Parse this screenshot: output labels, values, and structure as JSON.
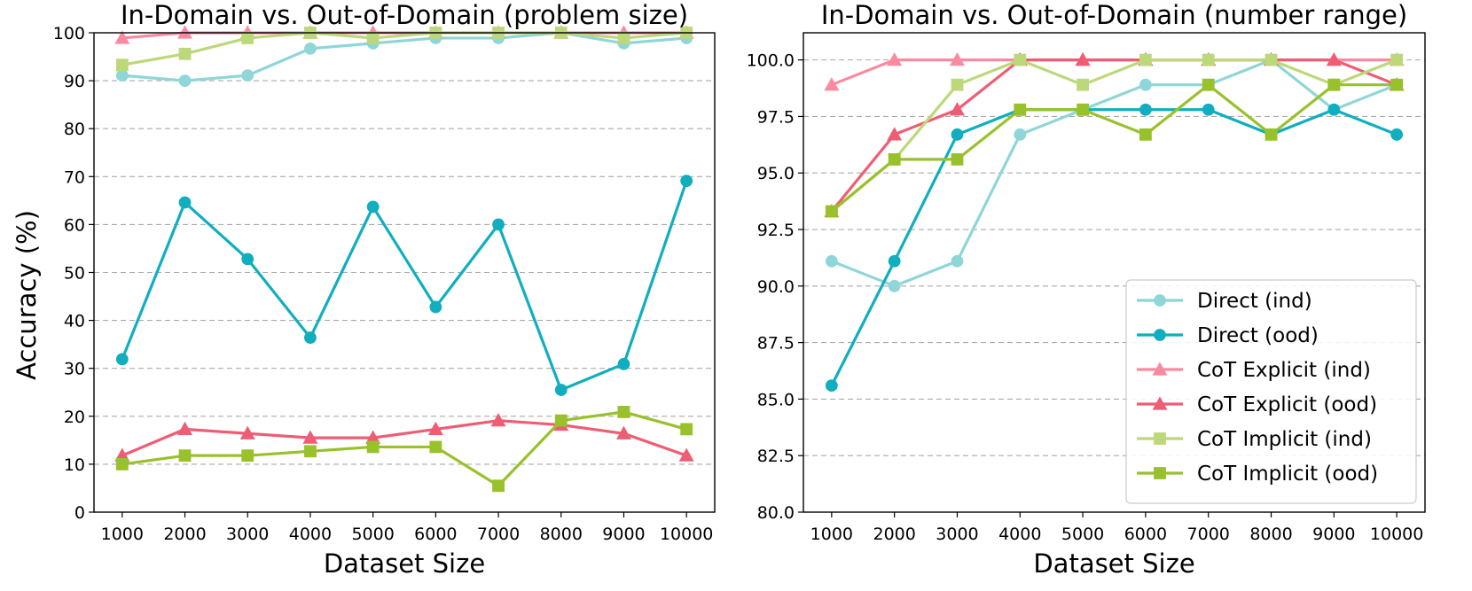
{
  "figure": {
    "shared_ylabel": "Accuracy (%)"
  },
  "chart_data": [
    {
      "type": "line",
      "title": "In-Domain vs. Out-of-Domain (problem size)",
      "xlabel": "Dataset Size",
      "x": [
        1000,
        2000,
        3000,
        4000,
        5000,
        6000,
        7000,
        8000,
        9000,
        10000
      ],
      "ylim": [
        0,
        100
      ],
      "yticks": [
        0,
        10,
        20,
        30,
        40,
        50,
        60,
        70,
        80,
        90,
        100
      ],
      "ytick_labels": [
        "0",
        "10",
        "20",
        "30",
        "40",
        "50",
        "60",
        "70",
        "80",
        "90",
        "100"
      ],
      "grid": "y-dashed",
      "series": [
        {
          "name": "Direct (ind)",
          "color": "#8fd6d8",
          "marker": "circle",
          "values": [
            91.1,
            90.0,
            91.1,
            96.7,
            97.8,
            98.9,
            98.9,
            100.0,
            97.8,
            98.9
          ]
        },
        {
          "name": "Direct (ood)",
          "color": "#10aebf",
          "marker": "circle",
          "values": [
            31.9,
            64.6,
            52.8,
            36.4,
            63.7,
            42.8,
            60.0,
            25.5,
            30.9,
            69.1
          ]
        },
        {
          "name": "CoT Explicit (ind)",
          "color": "#fb8aa1",
          "marker": "triangle",
          "values": [
            98.9,
            100.0,
            100.0,
            100.0,
            100.0,
            100.0,
            100.0,
            100.0,
            100.0,
            100.0
          ]
        },
        {
          "name": "CoT Explicit (ood)",
          "color": "#ee5d74",
          "marker": "triangle",
          "values": [
            11.8,
            17.3,
            16.4,
            15.5,
            15.5,
            17.3,
            19.1,
            18.2,
            16.4,
            11.8
          ]
        },
        {
          "name": "CoT Implicit (ind)",
          "color": "#bcd87a",
          "marker": "square",
          "values": [
            93.3,
            95.6,
            98.9,
            100.0,
            98.9,
            100.0,
            100.0,
            100.0,
            98.9,
            100.0
          ]
        },
        {
          "name": "CoT Implicit (ood)",
          "color": "#99c12c",
          "marker": "square",
          "values": [
            10.0,
            11.8,
            11.8,
            12.7,
            13.6,
            13.6,
            5.5,
            19.1,
            20.9,
            17.3
          ]
        }
      ]
    },
    {
      "type": "line",
      "title": "In-Domain vs. Out-of-Domain (number range)",
      "xlabel": "Dataset Size",
      "x": [
        1000,
        2000,
        3000,
        4000,
        5000,
        6000,
        7000,
        8000,
        9000,
        10000
      ],
      "ylim": [
        80,
        101.2
      ],
      "yticks": [
        80,
        82.5,
        85,
        87.5,
        90,
        92.5,
        95,
        97.5,
        100
      ],
      "ytick_labels": [
        "80.0",
        "82.5",
        "85.0",
        "87.5",
        "90.0",
        "92.5",
        "95.0",
        "97.5",
        "100.0"
      ],
      "grid": "y-dashed",
      "legend": "lower-right",
      "series": [
        {
          "name": "Direct (ind)",
          "color": "#8fd6d8",
          "marker": "circle",
          "values": [
            91.1,
            90.0,
            91.1,
            96.7,
            97.8,
            98.9,
            98.9,
            100.0,
            97.8,
            98.9
          ]
        },
        {
          "name": "Direct (ood)",
          "color": "#10aebf",
          "marker": "circle",
          "values": [
            85.6,
            91.1,
            96.7,
            97.8,
            97.8,
            97.8,
            97.8,
            96.7,
            97.8,
            96.7
          ]
        },
        {
          "name": "CoT Explicit (ind)",
          "color": "#fb8aa1",
          "marker": "triangle",
          "values": [
            98.9,
            100.0,
            100.0,
            100.0,
            100.0,
            100.0,
            100.0,
            100.0,
            100.0,
            100.0
          ]
        },
        {
          "name": "CoT Explicit (ood)",
          "color": "#ee5d74",
          "marker": "triangle",
          "values": [
            93.3,
            96.7,
            97.8,
            100.0,
            100.0,
            100.0,
            100.0,
            100.0,
            100.0,
            98.9
          ]
        },
        {
          "name": "CoT Implicit (ind)",
          "color": "#bcd87a",
          "marker": "square",
          "values": [
            93.3,
            95.6,
            98.9,
            100.0,
            98.9,
            100.0,
            100.0,
            100.0,
            98.9,
            100.0
          ]
        },
        {
          "name": "CoT Implicit (ood)",
          "color": "#99c12c",
          "marker": "square",
          "values": [
            93.3,
            95.6,
            95.6,
            97.8,
            97.8,
            96.7,
            98.9,
            96.7,
            98.9,
            98.9
          ]
        }
      ]
    }
  ]
}
